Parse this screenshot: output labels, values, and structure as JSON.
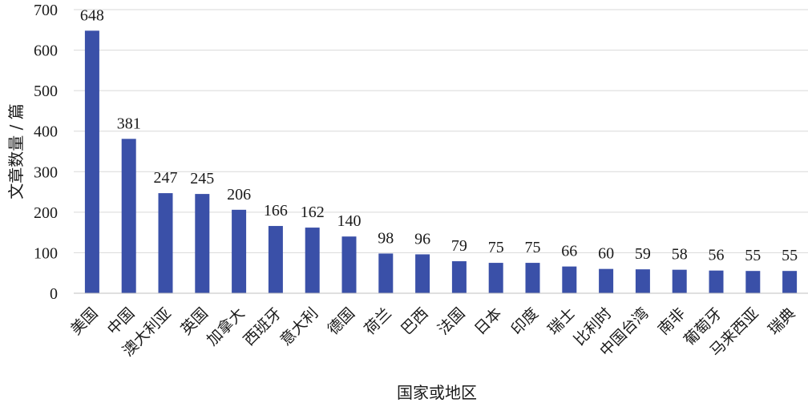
{
  "chart_data": {
    "type": "bar",
    "categories": [
      "美国",
      "中国",
      "澳大利亚",
      "英国",
      "加拿大",
      "西班牙",
      "意大利",
      "德国",
      "荷兰",
      "巴西",
      "法国",
      "日本",
      "印度",
      "瑞士",
      "比利时",
      "中国台湾",
      "南非",
      "葡萄牙",
      "马来西亚",
      "瑞典"
    ],
    "values": [
      648,
      381,
      247,
      245,
      206,
      166,
      162,
      140,
      98,
      96,
      79,
      75,
      75,
      66,
      60,
      59,
      58,
      56,
      55,
      55
    ],
    "xlabel": "国家或地区",
    "ylabel": "文章数量 / 篇",
    "ylim": [
      0,
      700
    ],
    "yticks": [
      0,
      100,
      200,
      300,
      400,
      500,
      600,
      700
    ],
    "grid": true,
    "data_labels": true,
    "bar_color": "#3a50a8",
    "grid_color": "#d9d9d9"
  }
}
